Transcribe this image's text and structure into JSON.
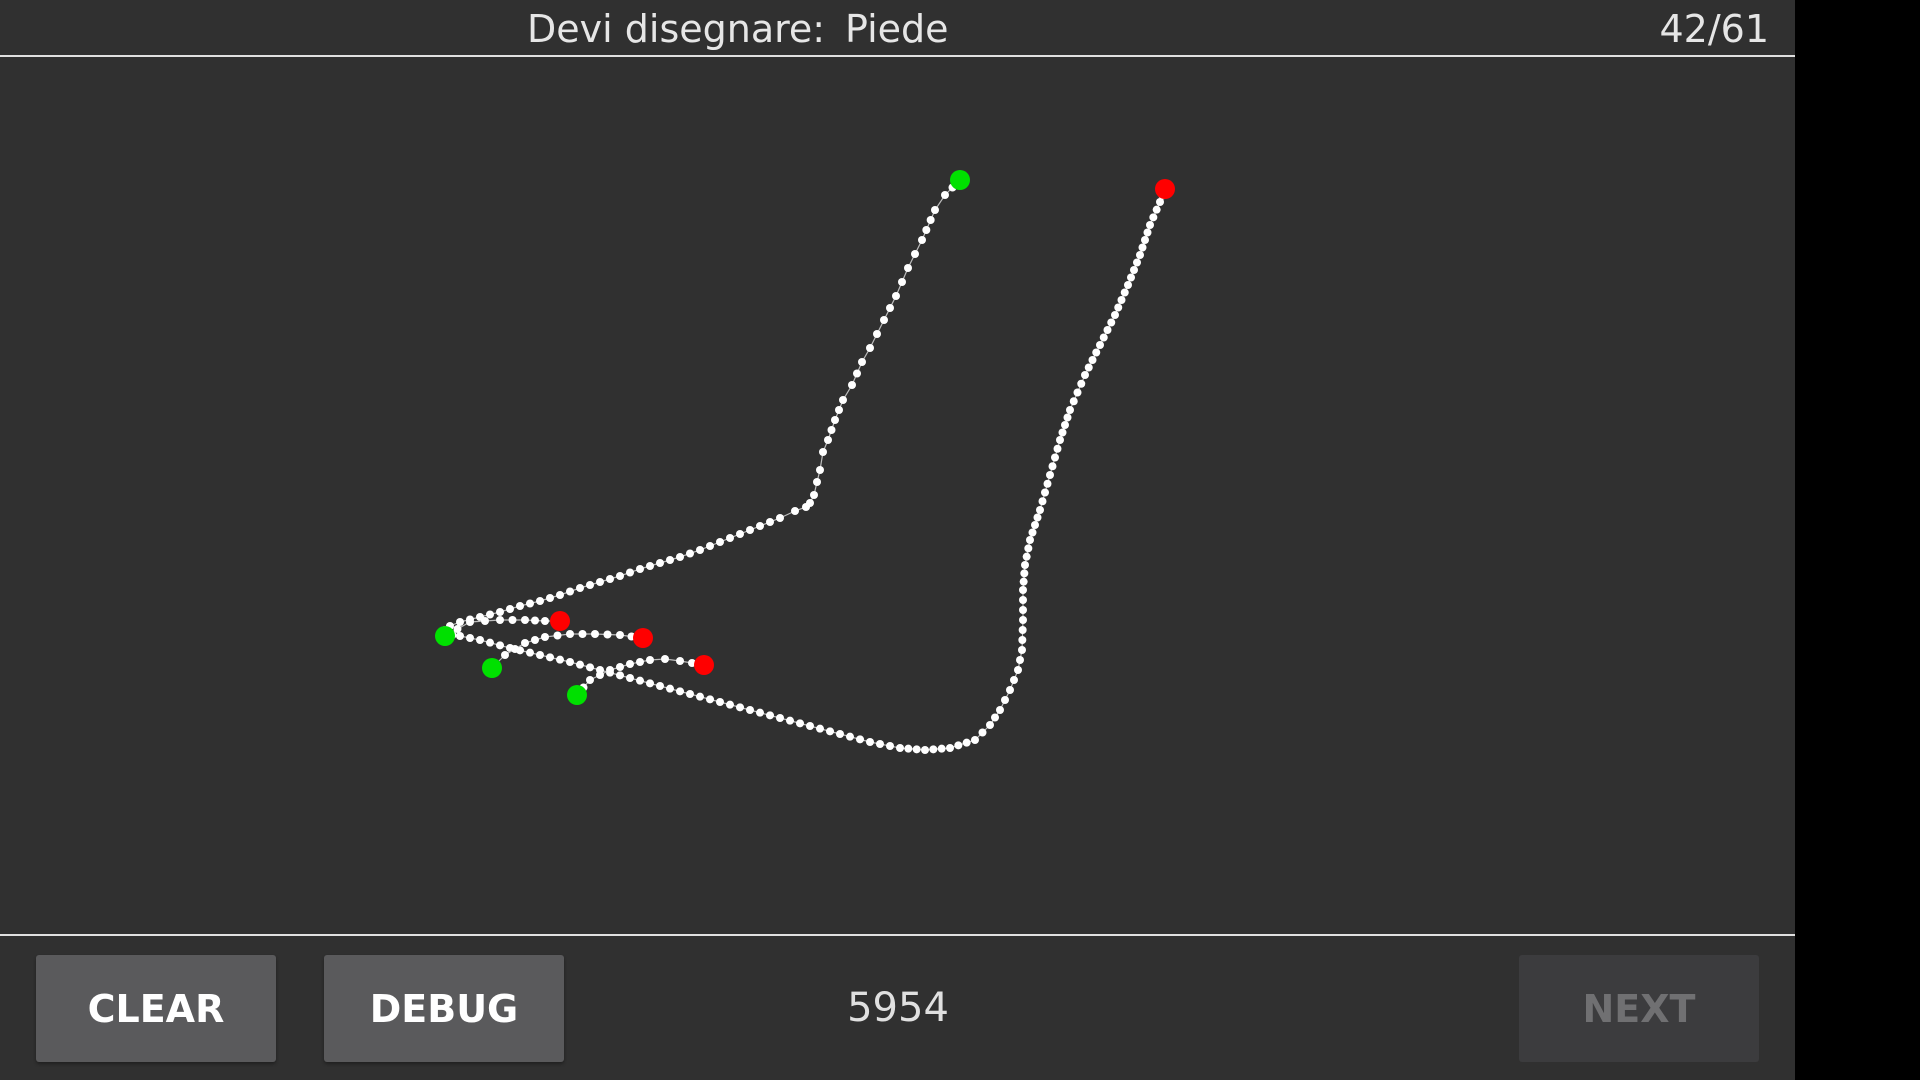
{
  "header": {
    "prompt_label": "Devi disegnare:",
    "prompt_word": "Piede",
    "progress": "42/61"
  },
  "footer": {
    "clear_label": "CLEAR",
    "debug_label": "DEBUG",
    "score": "5954",
    "next_label": "NEXT",
    "next_enabled": false
  },
  "colors": {
    "background": "#303030",
    "stroke_point": "#ffffff",
    "stroke_line": "#bdbdbd",
    "stroke_start": "#00e000",
    "stroke_end": "#ff0000"
  }
}
